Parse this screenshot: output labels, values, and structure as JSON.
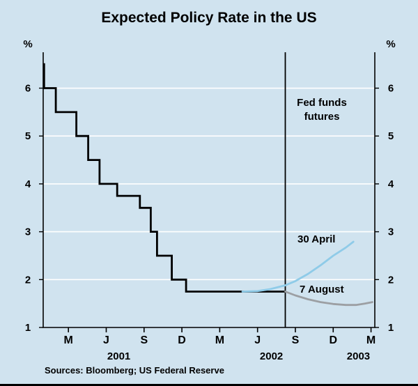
{
  "title": "Expected Policy Rate in the US",
  "y_axis": {
    "unit": "%",
    "ticks": [
      1,
      2,
      3,
      4,
      5,
      6
    ]
  },
  "annotations": {
    "futures_label": "Fed funds\nfutures",
    "april_label": "30 April",
    "august_label": "7 August"
  },
  "sources": "Sources: Bloomberg; US Federal Reserve",
  "colors": {
    "background": "#d0e3ef",
    "gridline": "#ffffff",
    "policy_rate": "#000000",
    "april_series": "#8fcbe8",
    "august_series": "#9c9fa3"
  },
  "chart_data": {
    "type": "line",
    "title": "Expected Policy Rate in the US",
    "xlabel": "",
    "ylabel": "%",
    "ylim": [
      1,
      6.75
    ],
    "xlim": [
      0,
      26.3
    ],
    "grid": true,
    "y_gridlines": [
      2,
      3,
      4,
      5,
      6
    ],
    "x_unit": "months since Jan 2001",
    "x_ticks": {
      "months": [
        2,
        5,
        8,
        11,
        14,
        17,
        20,
        23,
        26
      ],
      "labels": [
        "M",
        "J",
        "S",
        "D",
        "M",
        "J",
        "S",
        "D",
        "M"
      ]
    },
    "year_labels": [
      {
        "label": "2001",
        "month": 6.0
      },
      {
        "label": "2002",
        "month": 18.1
      },
      {
        "label": "2003",
        "month": 25.0
      }
    ],
    "vline_month": 19.2,
    "series": [
      {
        "name": "Policy rate",
        "style": "step",
        "color": "#000000",
        "points": [
          [
            0,
            6.5
          ],
          [
            0.07,
            6.5
          ],
          [
            0.07,
            6.0
          ],
          [
            1.0,
            6.0
          ],
          [
            1.0,
            5.5
          ],
          [
            2.63,
            5.5
          ],
          [
            2.63,
            5.0
          ],
          [
            3.57,
            5.0
          ],
          [
            3.57,
            4.5
          ],
          [
            4.47,
            4.5
          ],
          [
            4.47,
            4.0
          ],
          [
            5.87,
            4.0
          ],
          [
            5.87,
            3.75
          ],
          [
            7.67,
            3.75
          ],
          [
            7.67,
            3.5
          ],
          [
            8.53,
            3.5
          ],
          [
            8.53,
            3.0
          ],
          [
            9.03,
            3.0
          ],
          [
            9.03,
            2.5
          ],
          [
            10.2,
            2.5
          ],
          [
            10.2,
            2.0
          ],
          [
            11.33,
            2.0
          ],
          [
            11.33,
            1.75
          ],
          [
            19.2,
            1.75
          ]
        ]
      },
      {
        "name": "30 April",
        "style": "smooth",
        "color": "#8fcbe8",
        "points": [
          [
            15.8,
            1.75
          ],
          [
            17,
            1.76
          ],
          [
            18,
            1.8
          ],
          [
            19.2,
            1.88
          ],
          [
            20,
            1.97
          ],
          [
            21,
            2.12
          ],
          [
            22,
            2.3
          ],
          [
            23,
            2.5
          ],
          [
            24,
            2.67
          ],
          [
            24.6,
            2.79
          ]
        ]
      },
      {
        "name": "7 August",
        "style": "smooth",
        "color": "#9c9fa3",
        "points": [
          [
            19.2,
            1.75
          ],
          [
            20,
            1.67
          ],
          [
            21,
            1.59
          ],
          [
            22,
            1.53
          ],
          [
            23,
            1.49
          ],
          [
            24,
            1.47
          ],
          [
            24.8,
            1.47
          ],
          [
            25.5,
            1.5
          ],
          [
            26.1,
            1.53
          ]
        ]
      }
    ]
  }
}
